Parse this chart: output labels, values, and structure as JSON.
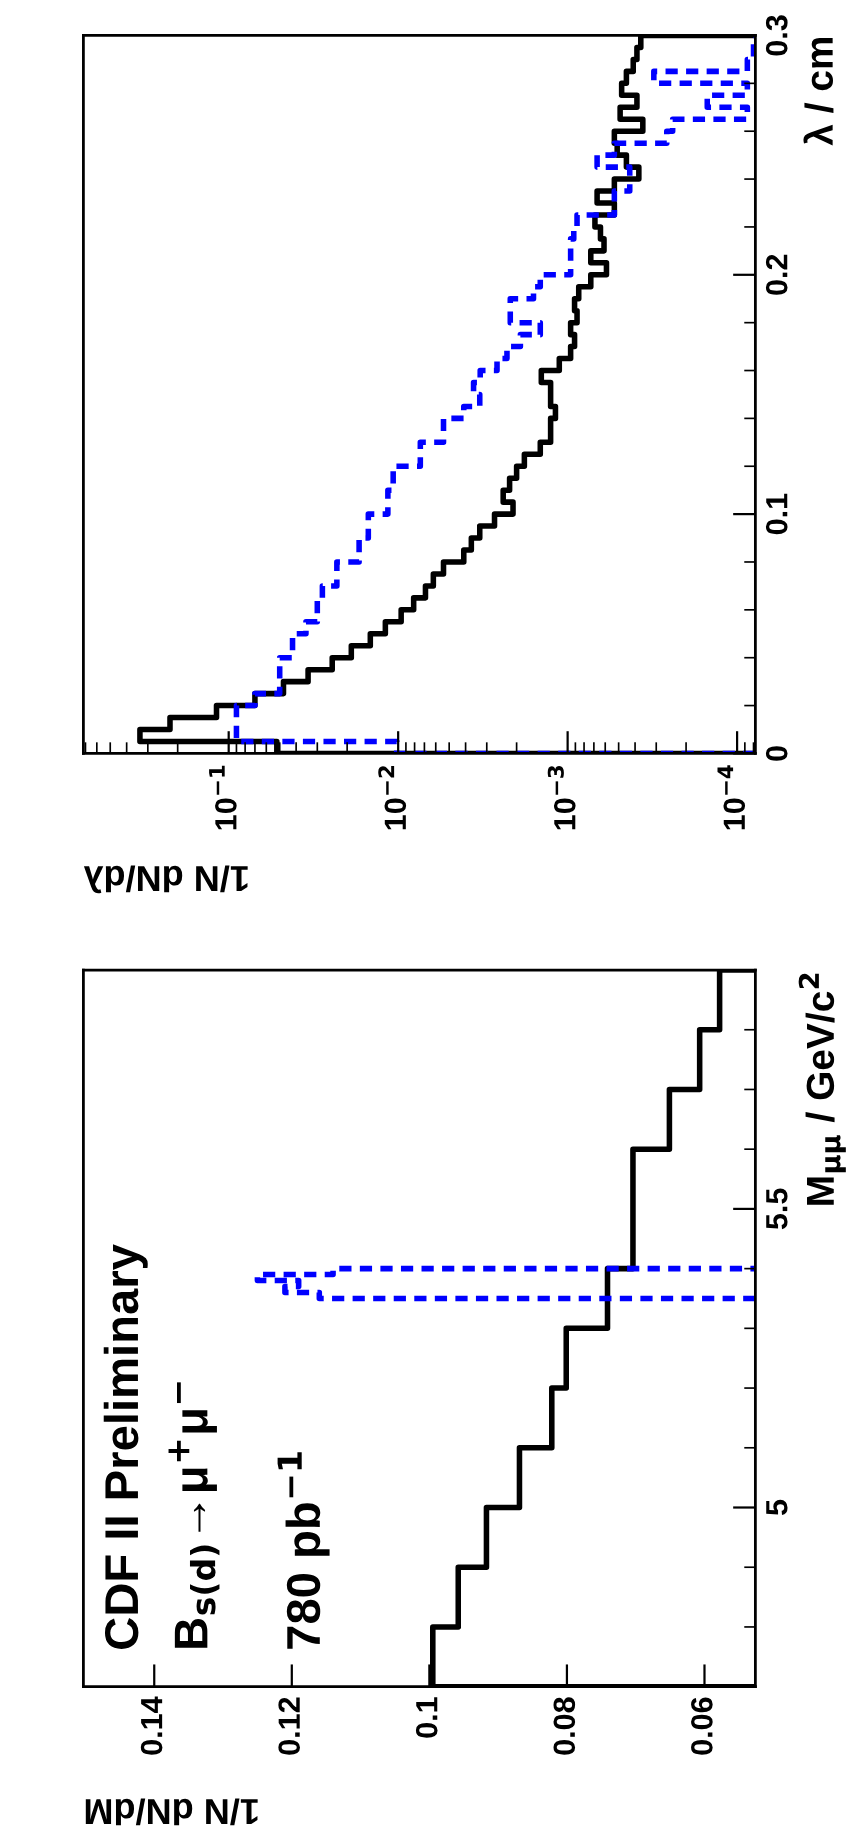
{
  "chart_data": [
    {
      "type": "histogram",
      "orientation": "horizontal",
      "log": "x",
      "xlabel": "1/N dN/dλ",
      "ylabel": "λ / cm",
      "xlim": [
        0.72,
        7.8e-05
      ],
      "xticks": [
        {
          "value": 0.1,
          "label": "10$^{−1}$"
        },
        {
          "value": 0.01,
          "label": "10$^{−2}$"
        },
        {
          "value": 0.001,
          "label": "10$^{−3}$"
        },
        {
          "value": 0.0001,
          "label": "10$^{−4}$"
        }
      ],
      "ylim": [
        0,
        0.3
      ],
      "yticks": [
        0,
        0.1,
        0.2,
        0.3
      ],
      "bins": [
        0,
        0.005,
        0.01,
        0.015,
        0.02,
        0.025,
        0.03,
        0.035,
        0.04,
        0.045,
        0.05,
        0.055,
        0.06,
        0.065,
        0.07,
        0.075,
        0.08,
        0.085,
        0.09,
        0.095,
        0.1,
        0.105,
        0.11,
        0.115,
        0.12,
        0.125,
        0.13,
        0.135,
        0.14,
        0.145,
        0.15,
        0.155,
        0.16,
        0.165,
        0.17,
        0.175,
        0.18,
        0.185,
        0.19,
        0.195,
        0.2,
        0.205,
        0.21,
        0.215,
        0.22,
        0.225,
        0.23,
        0.235,
        0.24,
        0.245,
        0.25,
        0.255,
        0.26,
        0.265,
        0.27,
        0.275,
        0.28,
        0.285,
        0.29,
        0.295,
        0.3
      ],
      "series": [
        {
          "color": "#000000",
          "line_style": "solid",
          "values": [
            0.052,
            0.334,
            0.222,
            0.118,
            0.07,
            0.0475,
            0.034,
            0.0245,
            0.0189,
            0.0146,
            0.0119,
            0.0096,
            0.0081,
            0.0069,
            0.0062,
            0.0054,
            0.0041,
            0.0037,
            0.0033,
            0.0027,
            0.0021,
            0.0024,
            0.0022,
            0.002,
            0.0018,
            0.00145,
            0.00126,
            0.00126,
            0.00118,
            0.00126,
            0.00126,
            0.00143,
            0.00112,
            0.00096,
            0.00091,
            0.00096,
            0.00088,
            0.00091,
            0.00086,
            0.00073,
            0.00059,
            0.00073,
            0.00061,
            0.00064,
            0.00069,
            0.00053,
            0.00067,
            0.00053,
            0.00038,
            0.00045,
            0.00051,
            0.00053,
            0.00036,
            0.00049,
            0.00039,
            0.00048,
            0.00045,
            0.00041,
            0.00039,
            0.00037
          ]
        },
        {
          "color": "#0000ff",
          "line_style": "dashed",
          "values": [
            0.0102,
            0.09,
            0.09,
            0.09,
            0.07,
            0.05,
            0.05,
            0.05,
            0.042,
            0.042,
            0.035,
            0.03,
            0.03,
            0.028,
            0.023,
            0.023,
            0.017,
            0.017,
            0.015,
            0.015,
            0.0115,
            0.0115,
            0.0107,
            0.0107,
            0.0074,
            0.0074,
            0.0054,
            0.0054,
            0.0041,
            0.0033,
            0.00359,
            0.00328,
            0.00261,
            0.00228,
            0.0019,
            0.00145,
            0.00218,
            0.00218,
            0.00159,
            0.00145,
            0.00096,
            0.00096,
            0.00096,
            0.00092,
            0.00088,
            0.00053,
            0.00053,
            0.00043,
            0.00043,
            0.00067,
            0.00053,
            0.00026,
            0.00024,
            8.7e-05,
            0.00015,
            8.7e-05,
            0.00031,
            8.7e-05,
            8e-05,
            8e-05
          ]
        }
      ]
    },
    {
      "type": "histogram",
      "orientation": "horizontal",
      "xlabel": "1/N dN/dM",
      "ylabel": "M$_{μμ}$ / GeV/c$^{2}$",
      "annotations": [
        "CDF II Preliminary",
        "B$_{s(d)}$→μ$^{+}$μ$^{−}$",
        "780 pb$^{−1}$"
      ],
      "xlim": [
        0.1503,
        0.0526
      ],
      "xticks": [
        0.06,
        0.08,
        0.1,
        0.12,
        0.14
      ],
      "ylim": [
        4.7,
        5.9
      ],
      "yticks": [
        5,
        5.5
      ],
      "bins": [
        4.7,
        4.8,
        4.9,
        5.0,
        5.1,
        5.2,
        5.3,
        5.4,
        5.5,
        5.6,
        5.7,
        5.8,
        5.9
      ],
      "series": [
        {
          "color": "#000000",
          "line_style": "solid",
          "values": [
            0.0995,
            0.0958,
            0.0917,
            0.0869,
            0.0822,
            0.0801,
            0.0741,
            0.0704,
            0.0704,
            0.0651,
            0.0607,
            0.0578
          ]
        },
        {
          "color": "#0000ff",
          "line_style": "dashed",
          "bins": [
            5.35,
            5.36,
            5.37,
            5.38,
            5.39,
            5.4
          ],
          "values": [
            0.116,
            0.121,
            0.119,
            0.125,
            0.114
          ]
        }
      ]
    }
  ]
}
